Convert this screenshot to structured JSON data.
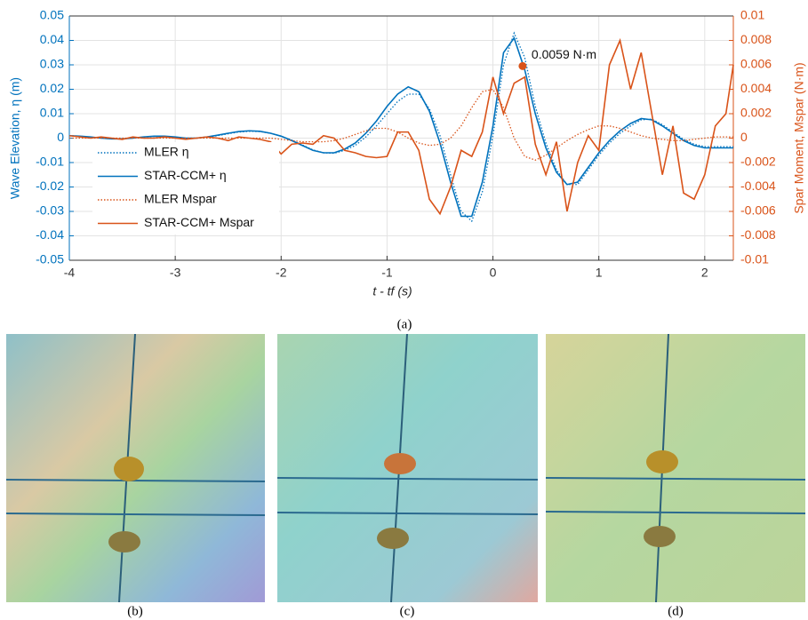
{
  "chart_data": {
    "type": "line",
    "y_label": "Wave Elevation, η (m)",
    "y2_label": "Spar Moment, Mspar (N·m)",
    "x_label": "t - tf (s)",
    "x": [
      -4,
      -3.9,
      -3.8,
      -3.7,
      -3.6,
      -3.5,
      -3.4,
      -3.3,
      -3.2,
      -3.1,
      -3,
      -2.9,
      -2.8,
      -2.7,
      -2.6,
      -2.5,
      -2.4,
      -2.3,
      -2.2,
      -2.1,
      -2,
      -1.9,
      -1.8,
      -1.7,
      -1.6,
      -1.5,
      -1.4,
      -1.3,
      -1.2,
      -1.1,
      -1,
      -0.9,
      -0.8,
      -0.7,
      -0.6,
      -0.5,
      -0.4,
      -0.3,
      -0.2,
      -0.1,
      0,
      0.1,
      0.2,
      0.3,
      0.4,
      0.5,
      0.6,
      0.7,
      0.8,
      0.9,
      1,
      1.1,
      1.2,
      1.3,
      1.4,
      1.5,
      1.6,
      1.7,
      1.8,
      1.9,
      2,
      2.1,
      2.2,
      2.27
    ],
    "series": [
      {
        "name": "MLER η",
        "color": "#0072BD",
        "dash": "dotted",
        "axis": "y",
        "values": [
          0.001,
          0.0008,
          0.0004,
          0,
          -0.0003,
          -0.0003,
          0,
          0.0004,
          0.0007,
          0.0007,
          0.0004,
          0,
          0,
          0.0004,
          0.001,
          0.0018,
          0.0025,
          0.0028,
          0.0027,
          0.002,
          0.0008,
          -0.0008,
          -0.0028,
          -0.0048,
          -0.006,
          -0.0062,
          -0.005,
          -0.003,
          0.0005,
          0.005,
          0.01,
          0.015,
          0.018,
          0.018,
          0.012,
          0.001,
          -0.015,
          -0.03,
          -0.034,
          -0.022,
          0.001,
          0.03,
          0.043,
          0.033,
          0.013,
          -0.002,
          -0.013,
          -0.019,
          -0.019,
          -0.013,
          -0.007,
          -0.002,
          0.002,
          0.005,
          0.0075,
          0.0078,
          0.0055,
          0.0025,
          -0.0005,
          -0.0025,
          -0.0035,
          -0.0035,
          -0.0035,
          -0.0035
        ]
      },
      {
        "name": "STAR-CCM+ η",
        "color": "#0072BD",
        "dash": "solid",
        "axis": "y",
        "values": [
          0.001,
          0.0008,
          0.0005,
          0,
          -0.0003,
          -0.0003,
          0,
          0.0005,
          0.0008,
          0.0008,
          0.0005,
          0,
          0,
          0.0005,
          0.0012,
          0.002,
          0.0027,
          0.003,
          0.0028,
          0.002,
          0.0008,
          -0.001,
          -0.003,
          -0.005,
          -0.006,
          -0.006,
          -0.0045,
          -0.002,
          0.002,
          0.007,
          0.013,
          0.018,
          0.021,
          0.019,
          0.011,
          -0.002,
          -0.018,
          -0.032,
          -0.032,
          -0.018,
          0.005,
          0.035,
          0.041,
          0.028,
          0.01,
          -0.004,
          -0.014,
          -0.019,
          -0.018,
          -0.012,
          -0.006,
          -0.001,
          0.003,
          0.006,
          0.008,
          0.0075,
          0.005,
          0.002,
          -0.001,
          -0.003,
          -0.004,
          -0.004,
          -0.004,
          -0.004
        ]
      },
      {
        "name": "MLER Mspar",
        "color": "#D95319",
        "dash": "dotted",
        "axis": "y2",
        "values": [
          0,
          0,
          0,
          0,
          0,
          0,
          0,
          0,
          0,
          0,
          0,
          0,
          0,
          0,
          0,
          0,
          0,
          0,
          0,
          0,
          -0.0001,
          -0.0002,
          -0.0003,
          -0.0003,
          -0.0003,
          -0.0002,
          0,
          0.0003,
          0.0006,
          0.0008,
          0.0008,
          0.0005,
          0,
          -0.0004,
          -0.0006,
          -0.0005,
          0,
          0.001,
          0.0025,
          0.0038,
          0.004,
          0.0025,
          0,
          -0.0015,
          -0.0018,
          -0.0014,
          -0.0008,
          -0.0002,
          0.0003,
          0.0007,
          0.001,
          0.001,
          0.0008,
          0.0005,
          0.0002,
          0,
          -0.0001,
          -0.0002,
          -0.0002,
          -0.0001,
          0,
          0.0001,
          0.0001,
          0.0001
        ]
      },
      {
        "name": "STAR-CCM+ Mspar",
        "color": "#D95319",
        "dash": "solid",
        "axis": "y2",
        "values": [
          0.0002,
          0.0001,
          0,
          0.0001,
          0,
          -0.0001,
          0.0001,
          0,
          0,
          0.0001,
          0,
          -0.0001,
          0,
          0.0001,
          0,
          -0.0002,
          0.0001,
          0,
          -0.0001,
          -0.0003,
          -0.0013,
          -0.0005,
          -0.0004,
          -0.0005,
          0.0002,
          0,
          -0.001,
          -0.0012,
          -0.0015,
          -0.0016,
          -0.0015,
          0.0005,
          0.0005,
          -0.001,
          -0.005,
          -0.0062,
          -0.004,
          -0.001,
          -0.0015,
          0.0005,
          0.005,
          0.002,
          0.0045,
          0.005,
          -0.0005,
          -0.003,
          -0.0003,
          -0.006,
          -0.002,
          0.0002,
          -0.001,
          0.006,
          0.008,
          0.004,
          0.007,
          0.002,
          -0.003,
          0.001,
          -0.0045,
          -0.005,
          -0.003,
          0.001,
          0.002,
          0.006
        ]
      }
    ],
    "xlim": [
      -4,
      2.27
    ],
    "xticks": [
      -4,
      -3,
      -2,
      -1,
      0,
      1,
      2
    ],
    "ylim": [
      -0.05,
      0.05
    ],
    "yticks": [
      -0.05,
      -0.04,
      -0.03,
      -0.02,
      -0.01,
      0,
      0.01,
      0.02,
      0.03,
      0.04,
      0.05
    ],
    "y2lim": [
      -0.01,
      0.01
    ],
    "y2ticks": [
      -0.01,
      -0.008,
      -0.006,
      -0.004,
      -0.002,
      0,
      0.002,
      0.004,
      0.006,
      0.008,
      0.01
    ],
    "grid": true,
    "legend": "left",
    "annotation": {
      "x": 0.28,
      "y": 0.0059,
      "axis": "y2",
      "label": "0.0059 N·m"
    }
  },
  "captions": [
    "(a)",
    "(b)",
    "(c)",
    "(d)"
  ]
}
